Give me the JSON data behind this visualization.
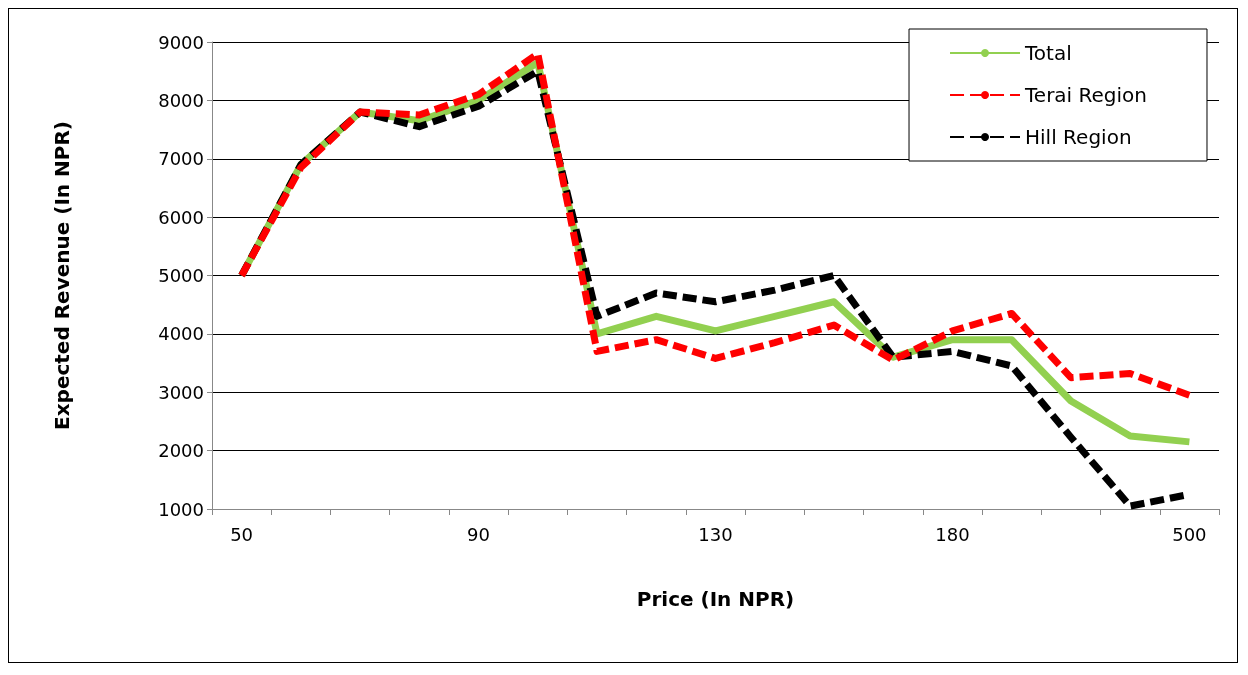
{
  "chart_data": {
    "type": "line",
    "xlabel": "Price (In NPR)",
    "ylabel": "Expected Revenue (In NPR)",
    "categories": [
      "50",
      null,
      null,
      null,
      "90",
      null,
      null,
      null,
      "130",
      null,
      null,
      null,
      "180",
      null,
      null,
      null,
      "500"
    ],
    "series": [
      {
        "name": "Total",
        "color": "#92d050",
        "line_style": "solid",
        "values": [
          5000,
          6900,
          7800,
          7650,
          8000,
          8650,
          4000,
          4300,
          4050,
          4300,
          4550,
          3600,
          3900,
          3900,
          2850,
          2250,
          2150
        ]
      },
      {
        "name": "Terai Region",
        "color": "#ff0000",
        "line_style": "dashed",
        "values": [
          5000,
          6850,
          7800,
          7750,
          8100,
          8800,
          3700,
          3900,
          3580,
          3850,
          4150,
          3550,
          4050,
          4350,
          3250,
          3320,
          2950
        ]
      },
      {
        "name": "Hill Region",
        "color": "#000000",
        "line_style": "dashed",
        "values": [
          5000,
          6900,
          7800,
          7550,
          7900,
          8500,
          4300,
          4700,
          4550,
          4750,
          5000,
          3600,
          3700,
          3450,
          2230,
          1050,
          1250
        ]
      }
    ],
    "ylim": [
      1000,
      9000
    ],
    "yticks": [
      1000,
      2000,
      3000,
      4000,
      5000,
      6000,
      7000,
      8000,
      9000
    ],
    "grid": "y",
    "legend": "top right",
    "marker": "none"
  }
}
